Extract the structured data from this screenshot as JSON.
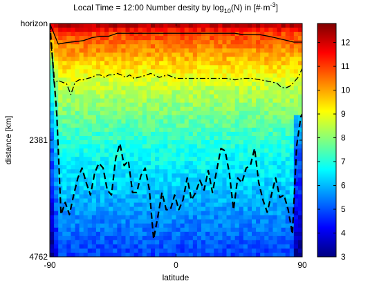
{
  "chart_data": {
    "type": "heatmap",
    "title": "Local Time = 12:00      Number desity by log",
    "title_sub": "10",
    "title_mid": "(N) in [#·m",
    "title_sup": "-3",
    "title_end": "]",
    "xlabel": "latitude",
    "ylabel": "distance [km]",
    "xlim": [
      -90,
      90
    ],
    "ylim": [
      0,
      4762
    ],
    "y_reversed": true,
    "x_ticks": [
      -90,
      0,
      90
    ],
    "x_tick_labels": [
      "-90",
      "0",
      "90"
    ],
    "y_ticks": [
      0,
      2381,
      4762
    ],
    "y_tick_labels": [
      "horizon",
      "2381",
      "4762"
    ],
    "colorbar": {
      "range": [
        3,
        12.8
      ],
      "ticks": [
        3,
        4,
        5,
        6,
        7,
        8,
        9,
        10,
        11,
        12
      ],
      "tick_labels": [
        "3",
        "4",
        "5",
        "6",
        "7",
        "8",
        "9",
        "10",
        "11",
        "12"
      ],
      "colormap": "jet"
    },
    "grid": false,
    "series": [
      {
        "style": "solid",
        "x": [
          -90,
          -84,
          -78,
          -72,
          -66,
          -60,
          -54,
          -48,
          -42,
          -36,
          -30,
          -24,
          -18,
          -12,
          -6,
          0,
          6,
          12,
          18,
          24,
          30,
          36,
          42,
          48,
          54,
          60,
          66,
          72,
          78,
          84,
          90
        ],
        "y": [
          0,
          420,
          390,
          370,
          350,
          290,
          260,
          260,
          200,
          200,
          200,
          200,
          200,
          200,
          200,
          200,
          200,
          200,
          200,
          200,
          200,
          200,
          200,
          230,
          230,
          230,
          260,
          300,
          340,
          380,
          380
        ]
      },
      {
        "style": "dashdot",
        "x": [
          -90,
          -87,
          -84,
          -81,
          -78,
          -75,
          -72,
          -69,
          -66,
          -63,
          -60,
          -57,
          -54,
          -51,
          -48,
          -45,
          -42,
          -39,
          -36,
          -33,
          -30,
          -24,
          -18,
          -12,
          -6,
          0,
          6,
          12,
          18,
          24,
          30,
          36,
          42,
          48,
          54,
          60,
          66,
          72,
          75,
          78,
          81,
          84,
          87,
          90
        ],
        "y": [
          0,
          1220,
          1160,
          1200,
          1230,
          1450,
          1200,
          1150,
          1150,
          1120,
          1100,
          1050,
          1050,
          1100,
          1050,
          1050,
          1020,
          1050,
          1100,
          1050,
          1120,
          1080,
          1020,
          1100,
          1050,
          1120,
          1120,
          1120,
          1120,
          1120,
          1120,
          1120,
          1150,
          1120,
          1120,
          1150,
          1180,
          1220,
          1300,
          1320,
          1280,
          1200,
          1100,
          920
        ]
      },
      {
        "style": "dashed",
        "x": [
          -90,
          -85,
          -82,
          -79,
          -76,
          -73,
          -70,
          -67,
          -64,
          -61,
          -58,
          -55,
          -52,
          -49,
          -46,
          -43,
          -40,
          -37,
          -34,
          -31,
          -28,
          -25,
          -22,
          -19,
          -16,
          -13,
          -10,
          -7,
          -4,
          -1,
          2,
          5,
          8,
          11,
          14,
          17,
          20,
          23,
          26,
          29,
          32,
          35,
          38,
          41,
          44,
          47,
          50,
          53,
          56,
          59,
          62,
          65,
          68,
          71,
          74,
          77,
          80,
          83,
          86,
          89,
          90
        ],
        "y": [
          0,
          1850,
          3900,
          3650,
          3900,
          3500,
          3150,
          2950,
          3250,
          3500,
          3050,
          2850,
          2950,
          3400,
          3500,
          2750,
          2450,
          2900,
          2800,
          3450,
          3450,
          3100,
          2950,
          3400,
          4400,
          3950,
          3450,
          3800,
          3800,
          3500,
          3800,
          3600,
          3150,
          3600,
          3450,
          3200,
          3400,
          3000,
          3450,
          3000,
          2550,
          2600,
          3050,
          3800,
          3150,
          3250,
          2950,
          2900,
          2550,
          3250,
          3600,
          3850,
          3500,
          3150,
          3550,
          3500,
          3800,
          4300,
          2500,
          1900,
          1850
        ]
      }
    ]
  }
}
